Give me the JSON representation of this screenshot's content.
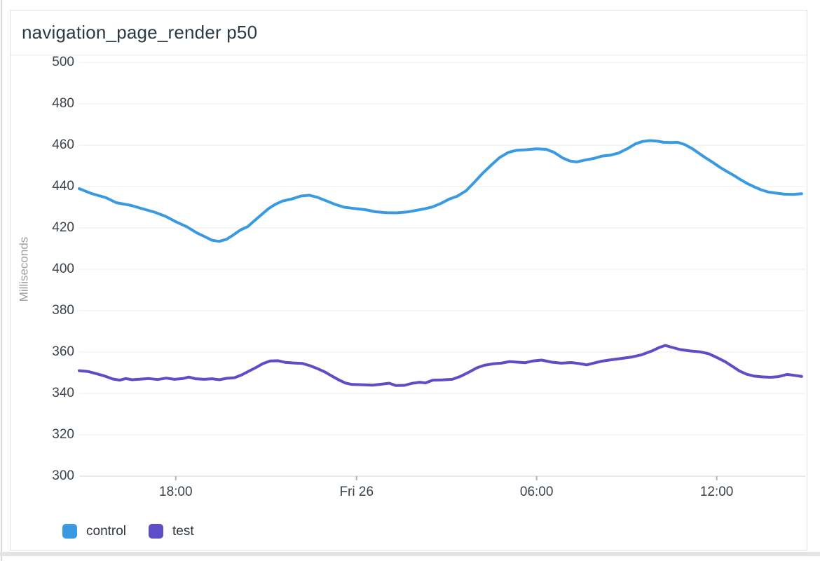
{
  "panel": {
    "title": "navigation_page_render p50"
  },
  "colors": {
    "control": "#399AE1",
    "test": "#5D4DC6",
    "grid": "#ececec",
    "axis_line": "#d6d8da",
    "tick_mark": "#b0b5ba"
  },
  "chart_data": {
    "type": "line",
    "title": "navigation_page_render p50",
    "xlabel": "",
    "ylabel": "Milliseconds",
    "ylim": [
      300,
      500
    ],
    "grid": true,
    "legend_position": "bottom",
    "y_ticks": [
      500,
      480,
      460,
      440,
      420,
      400,
      380,
      360,
      340,
      320,
      300
    ],
    "x_ticks": [
      {
        "label": "18:00",
        "pos": 0.133
      },
      {
        "label": "Fri 26",
        "pos": 0.382
      },
      {
        "label": "06:00",
        "pos": 0.63
      },
      {
        "label": "12:00",
        "pos": 0.878
      }
    ],
    "series": [
      {
        "name": "control",
        "color": "#399AE1",
        "points": [
          [
            0.0,
            439.0
          ],
          [
            0.017,
            436.6
          ],
          [
            0.037,
            434.6
          ],
          [
            0.051,
            432.2
          ],
          [
            0.07,
            431.0
          ],
          [
            0.09,
            429.0
          ],
          [
            0.104,
            427.6
          ],
          [
            0.119,
            425.6
          ],
          [
            0.133,
            423.0
          ],
          [
            0.148,
            420.6
          ],
          [
            0.162,
            417.6
          ],
          [
            0.174,
            415.6
          ],
          [
            0.183,
            414.0
          ],
          [
            0.193,
            413.5
          ],
          [
            0.203,
            414.5
          ],
          [
            0.212,
            416.5
          ],
          [
            0.222,
            419.0
          ],
          [
            0.232,
            420.6
          ],
          [
            0.241,
            423.4
          ],
          [
            0.251,
            426.4
          ],
          [
            0.261,
            429.4
          ],
          [
            0.27,
            431.4
          ],
          [
            0.28,
            433.0
          ],
          [
            0.293,
            434.0
          ],
          [
            0.305,
            435.4
          ],
          [
            0.317,
            435.8
          ],
          [
            0.328,
            434.8
          ],
          [
            0.341,
            433.0
          ],
          [
            0.353,
            431.3
          ],
          [
            0.365,
            430.0
          ],
          [
            0.379,
            429.4
          ],
          [
            0.394,
            428.8
          ],
          [
            0.408,
            427.8
          ],
          [
            0.423,
            427.4
          ],
          [
            0.437,
            427.3
          ],
          [
            0.452,
            427.7
          ],
          [
            0.463,
            428.4
          ],
          [
            0.475,
            429.2
          ],
          [
            0.487,
            430.2
          ],
          [
            0.498,
            431.8
          ],
          [
            0.51,
            434.0
          ],
          [
            0.521,
            435.4
          ],
          [
            0.533,
            438.0
          ],
          [
            0.544,
            442.0
          ],
          [
            0.556,
            446.5
          ],
          [
            0.568,
            450.5
          ],
          [
            0.579,
            454.0
          ],
          [
            0.591,
            456.5
          ],
          [
            0.602,
            457.5
          ],
          [
            0.616,
            457.8
          ],
          [
            0.629,
            458.2
          ],
          [
            0.643,
            458.0
          ],
          [
            0.654,
            456.5
          ],
          [
            0.666,
            453.8
          ],
          [
            0.676,
            452.3
          ],
          [
            0.685,
            451.9
          ],
          [
            0.697,
            452.8
          ],
          [
            0.709,
            453.6
          ],
          [
            0.72,
            454.7
          ],
          [
            0.732,
            455.2
          ],
          [
            0.743,
            456.2
          ],
          [
            0.755,
            458.3
          ],
          [
            0.766,
            460.6
          ],
          [
            0.776,
            461.8
          ],
          [
            0.786,
            462.2
          ],
          [
            0.795,
            462.0
          ],
          [
            0.805,
            461.4
          ],
          [
            0.815,
            461.3
          ],
          [
            0.824,
            461.4
          ],
          [
            0.834,
            460.3
          ],
          [
            0.844,
            458.4
          ],
          [
            0.853,
            456.2
          ],
          [
            0.863,
            453.8
          ],
          [
            0.873,
            451.6
          ],
          [
            0.882,
            449.4
          ],
          [
            0.892,
            447.3
          ],
          [
            0.902,
            445.3
          ],
          [
            0.911,
            443.3
          ],
          [
            0.921,
            441.3
          ],
          [
            0.93,
            439.8
          ],
          [
            0.94,
            438.3
          ],
          [
            0.95,
            437.3
          ],
          [
            0.96,
            436.8
          ],
          [
            0.971,
            436.3
          ],
          [
            0.983,
            436.2
          ],
          [
            0.995,
            436.5
          ]
        ]
      },
      {
        "name": "test",
        "color": "#5D4DC6",
        "points": [
          [
            0.0,
            351.0
          ],
          [
            0.012,
            350.6
          ],
          [
            0.023,
            349.6
          ],
          [
            0.035,
            348.4
          ],
          [
            0.046,
            347.0
          ],
          [
            0.056,
            346.4
          ],
          [
            0.064,
            347.2
          ],
          [
            0.073,
            346.6
          ],
          [
            0.085,
            346.9
          ],
          [
            0.096,
            347.2
          ],
          [
            0.108,
            346.7
          ],
          [
            0.12,
            347.4
          ],
          [
            0.131,
            346.8
          ],
          [
            0.143,
            347.2
          ],
          [
            0.151,
            347.9
          ],
          [
            0.16,
            347.1
          ],
          [
            0.172,
            346.8
          ],
          [
            0.183,
            347.1
          ],
          [
            0.193,
            346.6
          ],
          [
            0.203,
            347.3
          ],
          [
            0.214,
            347.6
          ],
          [
            0.224,
            349.0
          ],
          [
            0.234,
            350.8
          ],
          [
            0.243,
            352.4
          ],
          [
            0.253,
            354.4
          ],
          [
            0.263,
            355.7
          ],
          [
            0.274,
            355.8
          ],
          [
            0.284,
            355.0
          ],
          [
            0.295,
            354.7
          ],
          [
            0.307,
            354.5
          ],
          [
            0.318,
            353.4
          ],
          [
            0.328,
            352.0
          ],
          [
            0.338,
            350.4
          ],
          [
            0.347,
            348.6
          ],
          [
            0.357,
            346.6
          ],
          [
            0.367,
            345.0
          ],
          [
            0.376,
            344.3
          ],
          [
            0.39,
            344.2
          ],
          [
            0.404,
            344.0
          ],
          [
            0.417,
            344.5
          ],
          [
            0.427,
            344.9
          ],
          [
            0.436,
            343.8
          ],
          [
            0.448,
            343.9
          ],
          [
            0.459,
            344.9
          ],
          [
            0.469,
            345.4
          ],
          [
            0.477,
            345.1
          ],
          [
            0.487,
            346.4
          ],
          [
            0.5,
            346.5
          ],
          [
            0.514,
            346.8
          ],
          [
            0.525,
            348.2
          ],
          [
            0.537,
            350.3
          ],
          [
            0.548,
            352.4
          ],
          [
            0.558,
            353.6
          ],
          [
            0.57,
            354.3
          ],
          [
            0.581,
            354.6
          ],
          [
            0.593,
            355.4
          ],
          [
            0.604,
            355.1
          ],
          [
            0.614,
            354.8
          ],
          [
            0.625,
            355.7
          ],
          [
            0.637,
            356.1
          ],
          [
            0.651,
            355.1
          ],
          [
            0.664,
            354.6
          ],
          [
            0.678,
            354.9
          ],
          [
            0.689,
            354.4
          ],
          [
            0.699,
            353.8
          ],
          [
            0.708,
            354.6
          ],
          [
            0.72,
            355.6
          ],
          [
            0.734,
            356.3
          ],
          [
            0.747,
            356.9
          ],
          [
            0.761,
            357.6
          ],
          [
            0.774,
            358.6
          ],
          [
            0.788,
            360.4
          ],
          [
            0.799,
            362.2
          ],
          [
            0.807,
            363.2
          ],
          [
            0.817,
            362.2
          ],
          [
            0.828,
            361.2
          ],
          [
            0.842,
            360.5
          ],
          [
            0.855,
            360.1
          ],
          [
            0.867,
            359.2
          ],
          [
            0.878,
            357.4
          ],
          [
            0.89,
            355.3
          ],
          [
            0.9,
            353.0
          ],
          [
            0.909,
            350.9
          ],
          [
            0.919,
            349.3
          ],
          [
            0.929,
            348.4
          ],
          [
            0.94,
            348.0
          ],
          [
            0.952,
            347.8
          ],
          [
            0.963,
            348.1
          ],
          [
            0.975,
            349.2
          ],
          [
            0.985,
            348.7
          ],
          [
            0.995,
            348.2
          ]
        ]
      }
    ]
  }
}
